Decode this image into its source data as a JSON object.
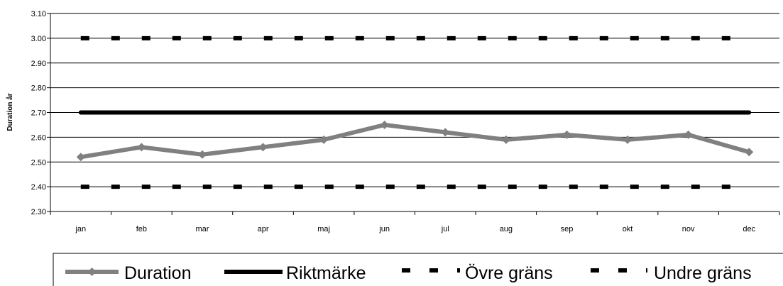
{
  "chart_data": {
    "type": "line",
    "title": "",
    "xlabel": "",
    "ylabel": "Duration år",
    "categories": [
      "jan",
      "feb",
      "mar",
      "apr",
      "maj",
      "jun",
      "jul",
      "aug",
      "sep",
      "okt",
      "nov",
      "dec"
    ],
    "ylim": [
      2.3,
      3.1
    ],
    "yticks": [
      "3.10",
      "3.00",
      "2.90",
      "2.80",
      "2.70",
      "2.60",
      "2.50",
      "2.40",
      "2.30"
    ],
    "grid": true,
    "legend_position": "bottom",
    "series": [
      {
        "name": "Duration",
        "values": [
          2.52,
          2.56,
          2.53,
          2.56,
          2.59,
          2.65,
          2.62,
          2.59,
          2.61,
          2.59,
          2.61,
          2.54
        ],
        "color": "#808080",
        "style": "solid-markers"
      },
      {
        "name": "Riktmärke",
        "values": [
          2.7,
          2.7,
          2.7,
          2.7,
          2.7,
          2.7,
          2.7,
          2.7,
          2.7,
          2.7,
          2.7,
          2.7
        ],
        "color": "#000000",
        "style": "solid"
      },
      {
        "name": "Övre gräns",
        "values": [
          3.0,
          3.0,
          3.0,
          3.0,
          3.0,
          3.0,
          3.0,
          3.0,
          3.0,
          3.0,
          3.0,
          3.0
        ],
        "color": "#000000",
        "style": "dashed"
      },
      {
        "name": "Undre gräns",
        "values": [
          2.4,
          2.4,
          2.4,
          2.4,
          2.4,
          2.4,
          2.4,
          2.4,
          2.4,
          2.4,
          2.4,
          2.4
        ],
        "color": "#000000",
        "style": "dashed"
      }
    ]
  }
}
